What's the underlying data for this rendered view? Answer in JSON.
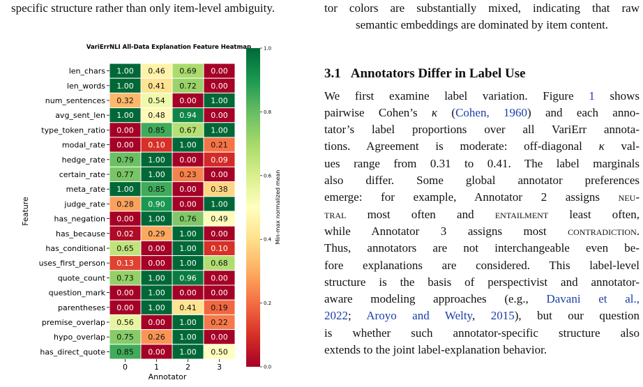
{
  "left_text": {
    "line": "specific structure rather than only item-level ambiguity."
  },
  "right_column": {
    "top_lines": [
      "tor colors are substantially mixed, indicating that raw",
      "semantic embeddings are dominated by item content."
    ],
    "section": {
      "number": "3.1",
      "title": "Annotators Differ in Label Use"
    },
    "paragraph": [
      [
        {
          "t": "We first examine label variation. Figure "
        },
        {
          "t": "1",
          "c": "cite"
        },
        {
          "t": " shows"
        }
      ],
      [
        {
          "t": "pairwise Cohen’s "
        },
        {
          "t": "κ",
          "i": true
        },
        {
          "t": " ("
        },
        {
          "t": "Cohen, 1960",
          "c": "cite"
        },
        {
          "t": ") and each anno-"
        }
      ],
      [
        {
          "t": "tator’s label proportions over all VariErr annota-"
        }
      ],
      [
        {
          "t": "tions. Agreement is moderate: off-diagonal "
        },
        {
          "t": "κ",
          "i": true
        },
        {
          "t": " val-"
        }
      ],
      [
        {
          "t": "ues range from 0.31 to 0.41. The label marginals"
        }
      ],
      [
        {
          "t": "also differ.  Some global annotator preferences"
        }
      ],
      [
        {
          "t": "emerge: for example, Annotator 2 assigns "
        },
        {
          "t": "neu-",
          "sc": true
        }
      ],
      [
        {
          "t": "tral",
          "sc": true
        },
        {
          "t": " most often and "
        },
        {
          "t": "entailment",
          "sc": true
        },
        {
          "t": " least often,"
        }
      ],
      [
        {
          "t": "while Annotator 3 assigns most "
        },
        {
          "t": "contradiction",
          "sc": true
        },
        {
          "t": "."
        }
      ],
      [
        {
          "t": "Thus, annotators are not interchangeable even be-"
        }
      ],
      [
        {
          "t": "fore explanations are considered. This label-level"
        }
      ],
      [
        {
          "t": "structure is the basis of perspectivist and annotator-"
        }
      ],
      [
        {
          "t": "aware modeling approaches (e.g., "
        },
        {
          "t": "Davani et al.,",
          "c": "cite"
        }
      ],
      [
        {
          "t": "2022",
          "c": "cite"
        },
        {
          "t": "; "
        },
        {
          "t": "Aroyo and Welty",
          "c": "cite"
        },
        {
          "t": ", "
        },
        {
          "t": "2015",
          "c": "cite"
        },
        {
          "t": "), but our question"
        }
      ],
      [
        {
          "t": "is whether such annotator-specific structure also"
        }
      ],
      [
        {
          "t": "extends to the joint label-explanation behavior."
        }
      ]
    ]
  },
  "chart_data": {
    "type": "heatmap",
    "title": "VariErrNLI All-Data Explanation Feature Heatmap",
    "xlabel": "Annotator",
    "ylabel": "Feature",
    "colorbar_label": "Min-max normalized mean",
    "colorbar_ticks": [
      "0.0",
      "0.2",
      "0.4",
      "0.6",
      "0.8",
      "1.0"
    ],
    "colormap": "RdYlGn",
    "vmin": 0.0,
    "vmax": 1.0,
    "columns": [
      "0",
      "1",
      "2",
      "3"
    ],
    "rows": [
      {
        "feature": "len_chars",
        "values": [
          1.0,
          0.46,
          0.69,
          0.0
        ]
      },
      {
        "feature": "len_words",
        "values": [
          1.0,
          0.41,
          0.72,
          0.0
        ]
      },
      {
        "feature": "num_sentences",
        "values": [
          0.32,
          0.54,
          0.0,
          1.0
        ]
      },
      {
        "feature": "avg_sent_len",
        "values": [
          1.0,
          0.48,
          0.94,
          0.0
        ]
      },
      {
        "feature": "type_token_ratio",
        "values": [
          0.0,
          0.85,
          0.67,
          1.0
        ]
      },
      {
        "feature": "modal_rate",
        "values": [
          0.0,
          0.1,
          1.0,
          0.21
        ]
      },
      {
        "feature": "hedge_rate",
        "values": [
          0.79,
          1.0,
          0.0,
          0.09
        ]
      },
      {
        "feature": "certain_rate",
        "values": [
          0.77,
          1.0,
          0.23,
          0.0
        ]
      },
      {
        "feature": "meta_rate",
        "values": [
          1.0,
          0.85,
          0.0,
          0.38
        ]
      },
      {
        "feature": "judge_rate",
        "values": [
          0.28,
          0.9,
          0.0,
          1.0
        ]
      },
      {
        "feature": "has_negation",
        "values": [
          0.0,
          1.0,
          0.76,
          0.49
        ]
      },
      {
        "feature": "has_because",
        "values": [
          0.02,
          0.29,
          1.0,
          0.0
        ]
      },
      {
        "feature": "has_conditional",
        "values": [
          0.65,
          0.0,
          1.0,
          0.1
        ]
      },
      {
        "feature": "uses_first_person",
        "values": [
          0.13,
          0.0,
          1.0,
          0.68
        ]
      },
      {
        "feature": "quote_count",
        "values": [
          0.73,
          1.0,
          0.96,
          0.0
        ]
      },
      {
        "feature": "question_mark",
        "values": [
          0.0,
          1.0,
          0.0,
          0.0
        ]
      },
      {
        "feature": "parentheses",
        "values": [
          0.0,
          1.0,
          0.41,
          0.19
        ]
      },
      {
        "feature": "premise_overlap",
        "values": [
          0.56,
          0.0,
          1.0,
          0.22
        ]
      },
      {
        "feature": "hypo_overlap",
        "values": [
          0.75,
          0.26,
          1.0,
          0.0
        ]
      },
      {
        "feature": "has_direct_quote",
        "values": [
          0.85,
          0.0,
          1.0,
          0.5
        ]
      }
    ]
  }
}
